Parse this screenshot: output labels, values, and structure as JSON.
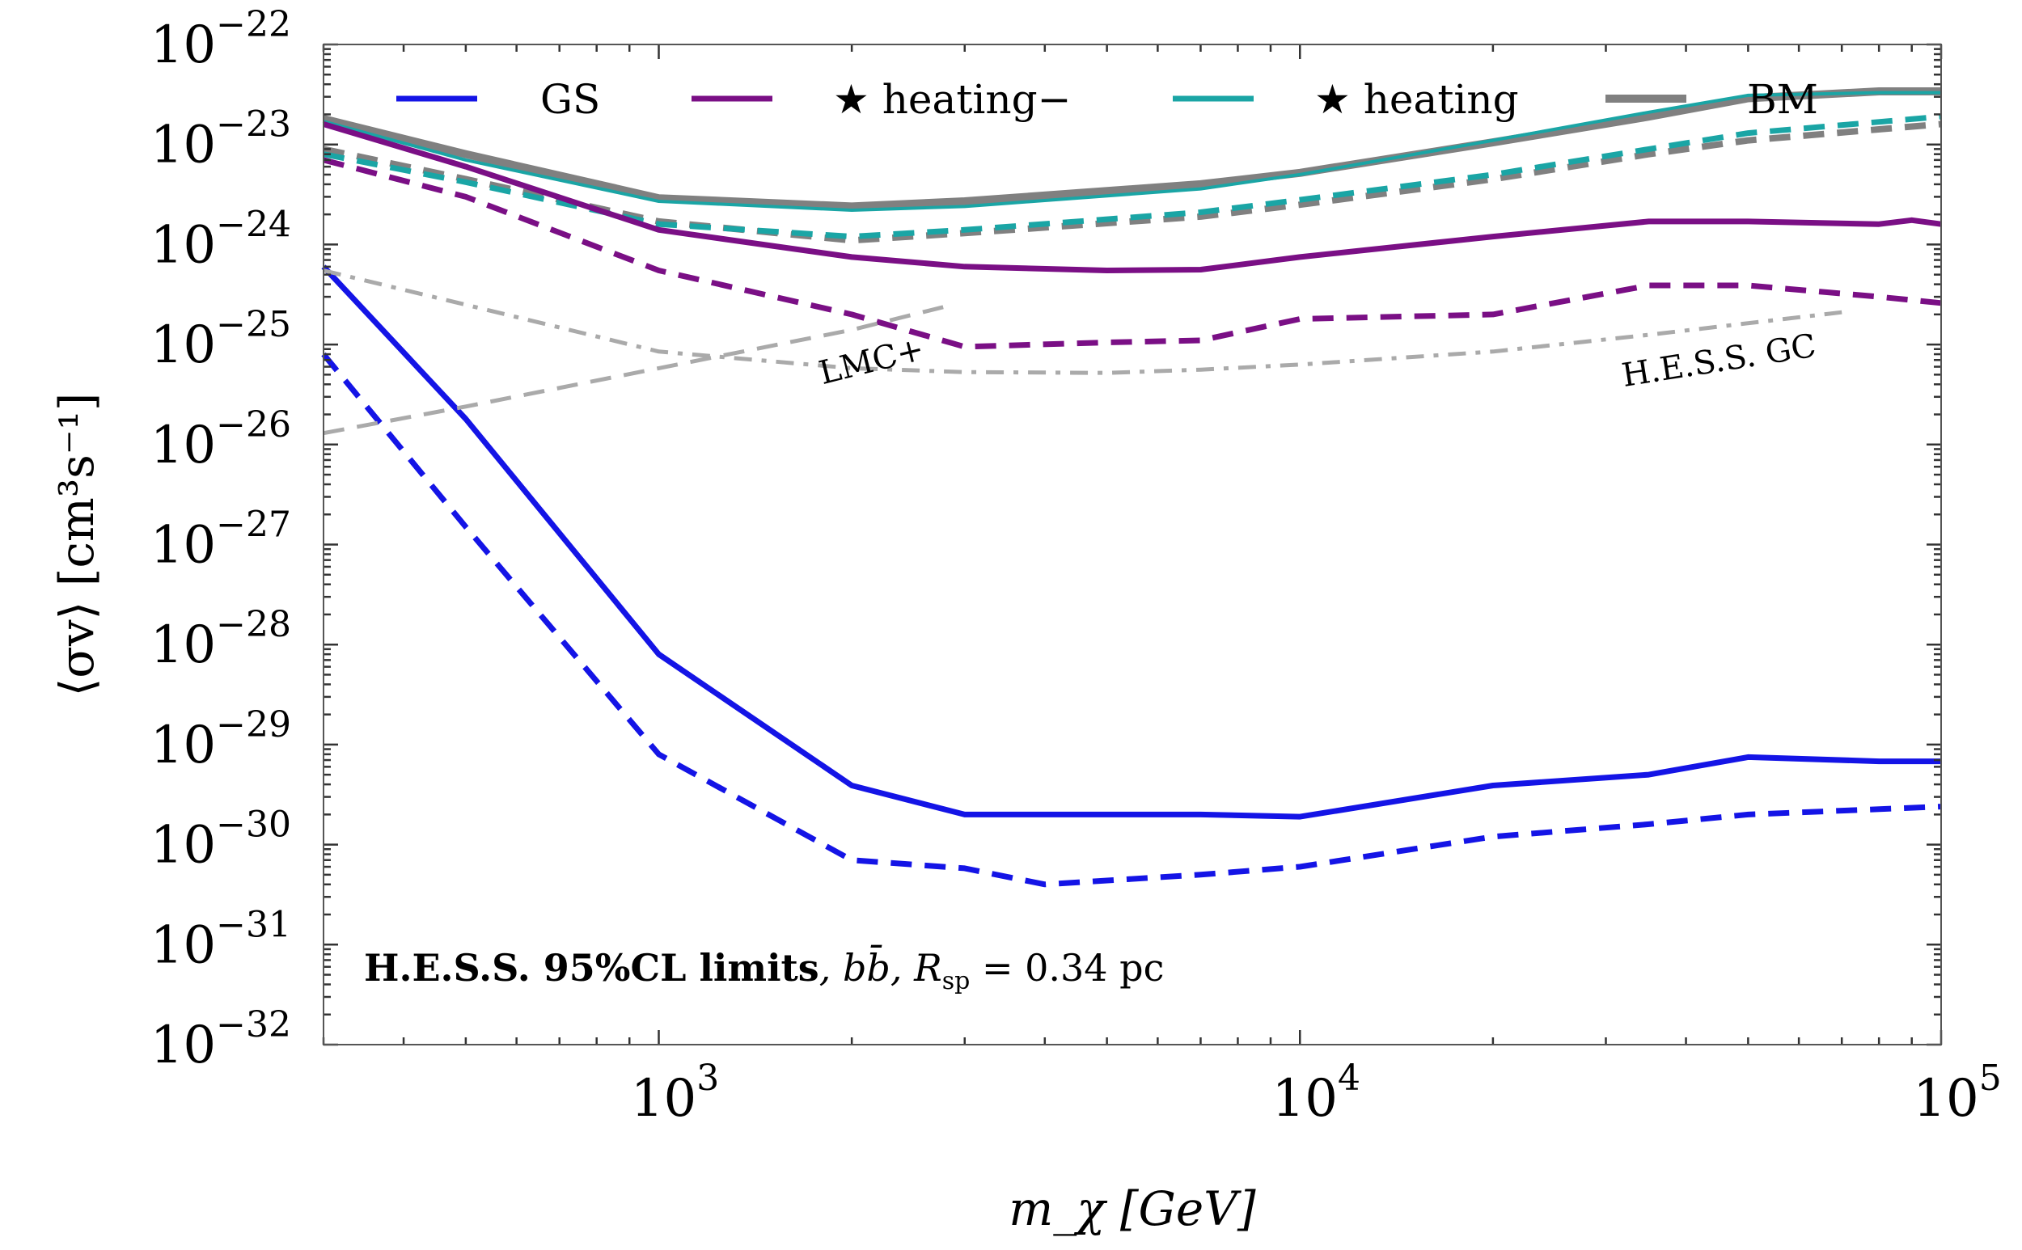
{
  "chart_data": {
    "type": "line",
    "title": "",
    "xlabel": "m_χ [GeV]",
    "ylabel": "⟨σv⟩ [cm³s⁻¹]",
    "xscale": "log",
    "yscale": "log",
    "xlim": [
      300,
      100000
    ],
    "ylim": [
      1e-32,
      1e-22
    ],
    "x_ticks": [
      {
        "value": 1000,
        "base": "10",
        "exp": "3"
      },
      {
        "value": 10000,
        "base": "10",
        "exp": "4"
      },
      {
        "value": 100000,
        "base": "10",
        "exp": "5"
      }
    ],
    "y_ticks": [
      {
        "value": 1e-22,
        "base": "10",
        "exp": "−22"
      },
      {
        "value": 1e-23,
        "base": "10",
        "exp": "−23"
      },
      {
        "value": 1e-24,
        "base": "10",
        "exp": "−24"
      },
      {
        "value": 1e-25,
        "base": "10",
        "exp": "−25"
      },
      {
        "value": 1e-26,
        "base": "10",
        "exp": "−26"
      },
      {
        "value": 1e-27,
        "base": "10",
        "exp": "−27"
      },
      {
        "value": 1e-28,
        "base": "10",
        "exp": "−28"
      },
      {
        "value": 1e-29,
        "base": "10",
        "exp": "−29"
      },
      {
        "value": 1e-30,
        "base": "10",
        "exp": "−30"
      },
      {
        "value": 1e-31,
        "base": "10",
        "exp": "−31"
      },
      {
        "value": 1e-32,
        "base": "10",
        "exp": "−32"
      }
    ],
    "legend_position": "top",
    "series": [
      {
        "id": "bm-solid",
        "legend": "BM",
        "color": "#808080",
        "style": "solid",
        "x": [
          300,
          500,
          1000,
          2000,
          3000,
          7000,
          10000,
          20000,
          35000,
          50000,
          80000,
          100000
        ],
        "y": [
          1.8e-23,
          8e-24,
          2.9e-24,
          2.4e-24,
          2.7e-24,
          4e-24,
          5.2e-24,
          1.05e-23,
          1.9e-23,
          2.9e-23,
          3.4e-23,
          3.4e-23
        ]
      },
      {
        "id": "heating-solid",
        "legend": "★ heating",
        "color": "#1aa5a5",
        "style": "solid",
        "x": [
          300,
          500,
          1000,
          2000,
          3000,
          7000,
          10000,
          20000,
          35000,
          50000,
          80000,
          100000
        ],
        "y": [
          1.7e-23,
          7e-24,
          2.7e-24,
          2.2e-24,
          2.4e-24,
          3.6e-24,
          5e-24,
          1.1e-23,
          2.1e-23,
          3.1e-23,
          3.3e-23,
          3.3e-23
        ]
      },
      {
        "id": "bm-dashed",
        "color": "#808080",
        "style": "dashed",
        "x": [
          300,
          500,
          1000,
          2000,
          3000,
          7000,
          10000,
          20000,
          35000,
          50000,
          100000
        ],
        "y": [
          9e-24,
          4.5e-24,
          1.7e-24,
          1.1e-24,
          1.3e-24,
          1.9e-24,
          2.5e-24,
          4.5e-24,
          8e-24,
          1.1e-23,
          1.6e-23
        ]
      },
      {
        "id": "heating-dashed",
        "color": "#1aa5a5",
        "style": "dashed",
        "x": [
          300,
          500,
          1000,
          2000,
          3000,
          7000,
          10000,
          20000,
          35000,
          50000,
          100000
        ],
        "y": [
          8e-24,
          4.2e-24,
          1.6e-24,
          1.2e-24,
          1.4e-24,
          2.1e-24,
          2.8e-24,
          5e-24,
          9e-24,
          1.3e-23,
          1.9e-23
        ]
      },
      {
        "id": "heating-minus-solid",
        "legend": "★ heating−",
        "color": "#7a0f85",
        "style": "solid",
        "x": [
          300,
          500,
          1000,
          2000,
          3000,
          5000,
          7000,
          10000,
          20000,
          35000,
          50000,
          80000,
          90000,
          100000
        ],
        "y": [
          1.6e-23,
          6e-24,
          1.4e-24,
          7.5e-25,
          6e-25,
          5.5e-25,
          5.6e-25,
          7.5e-25,
          1.2e-24,
          1.7e-24,
          1.7e-24,
          1.6e-24,
          1.75e-24,
          1.6e-24
        ]
      },
      {
        "id": "heating-minus-dashed",
        "color": "#7a0f85",
        "style": "dashed",
        "x": [
          300,
          500,
          1000,
          2000,
          3000,
          5000,
          7000,
          10000,
          20000,
          35000,
          50000,
          80000,
          100000
        ],
        "y": [
          7e-24,
          3e-24,
          5.5e-25,
          2e-25,
          9.5e-26,
          1.05e-25,
          1.1e-25,
          1.8e-25,
          2e-25,
          3.9e-25,
          3.9e-25,
          3e-25,
          2.6e-25
        ]
      },
      {
        "id": "gs-solid",
        "legend": "GS",
        "color": "#1414e6",
        "style": "solid",
        "x": [
          300,
          500,
          1000,
          2000,
          3000,
          7000,
          10000,
          20000,
          35000,
          50000,
          80000,
          100000
        ],
        "y": [
          6e-25,
          1.8e-26,
          8e-29,
          3.9e-30,
          2e-30,
          2e-30,
          1.9e-30,
          3.9e-30,
          5e-30,
          7.5e-30,
          6.8e-30,
          6.8e-30
        ]
      },
      {
        "id": "gs-dashed",
        "color": "#1414e6",
        "style": "dashed",
        "x": [
          300,
          500,
          1000,
          2000,
          3000,
          4000,
          7000,
          10000,
          20000,
          35000,
          50000,
          100000
        ],
        "y": [
          8e-26,
          1.5e-27,
          8e-30,
          7e-31,
          5.8e-31,
          4e-31,
          5e-31,
          6e-31,
          1.2e-30,
          1.6e-30,
          2e-30,
          2.4e-30
        ]
      },
      {
        "id": "hess-gc",
        "label": "H.E.S.S. GC",
        "color": "#aaaaaa",
        "style": "dashdot",
        "x": [
          300,
          500,
          1000,
          2000,
          3000,
          5000,
          7000,
          10000,
          20000,
          35000,
          70000
        ],
        "y": [
          5.5e-25,
          2.5e-25,
          8.5e-26,
          5.8e-26,
          5.3e-26,
          5.2e-26,
          5.6e-26,
          6.3e-26,
          8.5e-26,
          1.25e-25,
          2.1e-25
        ]
      },
      {
        "id": "lmc-plus",
        "label": "LMC+",
        "color": "#aaaaaa",
        "style": "dashed",
        "x": [
          300,
          500,
          1000,
          2000,
          2800
        ],
        "y": [
          1.3e-26,
          2.4e-26,
          5.8e-26,
          1.4e-25,
          2.4e-25
        ]
      }
    ],
    "annotations": {
      "lmc_label": "LMC+",
      "hess_gc_label": "H.E.S.S. GC",
      "caption_bold": "H.E.S.S. 95%CL limits",
      "caption_rest": ", bb̄, R",
      "caption_sub": "sp",
      "caption_end": " = 0.34 pc"
    }
  }
}
